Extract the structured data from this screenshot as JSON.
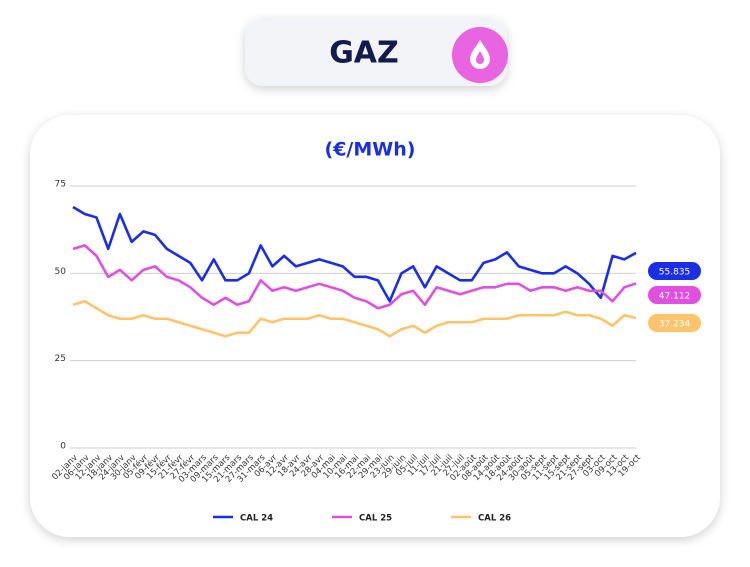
{
  "header": {
    "title": "GAZ"
  },
  "chart_data": {
    "type": "line",
    "title": "(€/MWh)",
    "categories": [
      "02-janv",
      "06-janv",
      "12-janv",
      "18-janv",
      "24-janv",
      "30-janv",
      "05-févr",
      "09-févr",
      "15-févr",
      "21-févr",
      "27-févr",
      "03-mars",
      "09-mars",
      "15-mars",
      "21-mars",
      "27-mars",
      "31-mars",
      "06-avr",
      "12-avr",
      "18-avr",
      "24-avr",
      "28-avr",
      "04-mai",
      "10-mai",
      "16-mai",
      "22-mai",
      "29-mai",
      "23-juin",
      "29-juin",
      "05-juil",
      "11-juil",
      "17-juil",
      "21-juil",
      "27-juil",
      "02-août",
      "08-août",
      "14-août",
      "18-août",
      "24-août",
      "30-août",
      "05-sept",
      "11-sept",
      "15-sept",
      "21-sept",
      "27-sept",
      "03-oct",
      "09-oct",
      "13-oct",
      "19-oct"
    ],
    "series": [
      {
        "name": "CAL 24",
        "color": "#1a2ee8",
        "values": [
          69,
          67,
          66,
          57,
          67,
          59,
          62,
          61,
          57,
          55,
          53,
          48,
          54,
          48,
          48,
          50,
          58,
          52,
          55,
          52,
          53,
          54,
          53,
          52,
          49,
          49,
          48,
          42,
          50,
          52,
          46,
          52,
          50,
          48,
          48,
          53,
          54,
          56,
          52,
          51,
          50,
          50,
          52,
          50,
          47,
          43,
          55,
          54,
          55.835
        ]
      },
      {
        "name": "CAL 25",
        "color": "#e050e0",
        "values": [
          57,
          58,
          55,
          49,
          51,
          48,
          51,
          52,
          49,
          48,
          46,
          43,
          41,
          43,
          41,
          42,
          48,
          45,
          46,
          45,
          46,
          47,
          46,
          45,
          43,
          42,
          40,
          41,
          44,
          45,
          41,
          46,
          45,
          44,
          45,
          46,
          46,
          47,
          47,
          45,
          46,
          46,
          45,
          46,
          45,
          45,
          42,
          46,
          47.112
        ]
      },
      {
        "name": "CAL 26",
        "color": "#ffc46b",
        "values": [
          41,
          42,
          40,
          38,
          37,
          37,
          38,
          37,
          37,
          36,
          35,
          34,
          33,
          32,
          33,
          33,
          37,
          36,
          37,
          37,
          37,
          38,
          37,
          37,
          36,
          35,
          34,
          32,
          34,
          35,
          33,
          35,
          36,
          36,
          36,
          37,
          37,
          37,
          38,
          38,
          38,
          38,
          39,
          38,
          38,
          37,
          35,
          38,
          37.234
        ]
      }
    ],
    "ylim": [
      0,
      75
    ],
    "yticks": [
      0,
      25,
      50,
      75
    ],
    "grid": true
  }
}
